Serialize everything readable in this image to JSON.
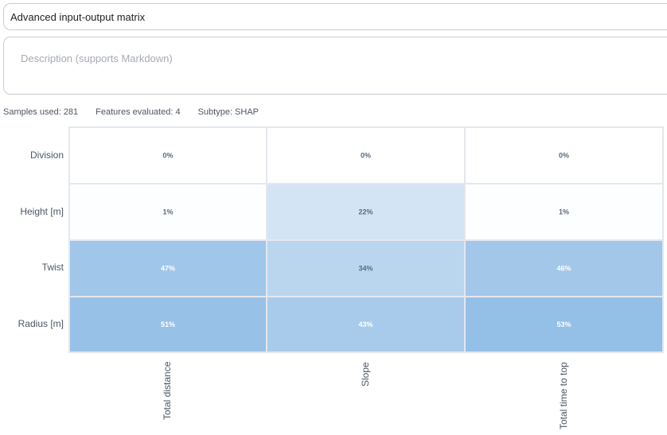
{
  "title_input": {
    "value": "Advanced input-output matrix"
  },
  "description_input": {
    "placeholder": "Description (supports Markdown)"
  },
  "stats": {
    "samples": "Samples used: 281",
    "features": "Features evaluated: 4",
    "subtype": "Subtype: SHAP"
  },
  "chart_data": {
    "type": "heatmap",
    "rows": [
      "Division",
      "Height [m]",
      "Twist",
      "Radius  [m]"
    ],
    "columns": [
      "Total distance",
      "Slope",
      "Total time to top"
    ],
    "values": [
      [
        0,
        0,
        0
      ],
      [
        1,
        22,
        1
      ],
      [
        47,
        34,
        46
      ],
      [
        51,
        43,
        53
      ]
    ],
    "cell_labels": [
      [
        "0%",
        "0%",
        "0%"
      ],
      [
        "1%",
        "22%",
        "1%"
      ],
      [
        "47%",
        "34%",
        "46%"
      ],
      [
        "51%",
        "43%",
        "53%"
      ]
    ],
    "value_range": [
      0,
      53
    ],
    "colors": {
      "low": "#ffffff",
      "high": "#94bfe6",
      "dark_text": "#5a6b80",
      "light_text": "#ffffff",
      "grid": "#e3e7ee"
    }
  }
}
